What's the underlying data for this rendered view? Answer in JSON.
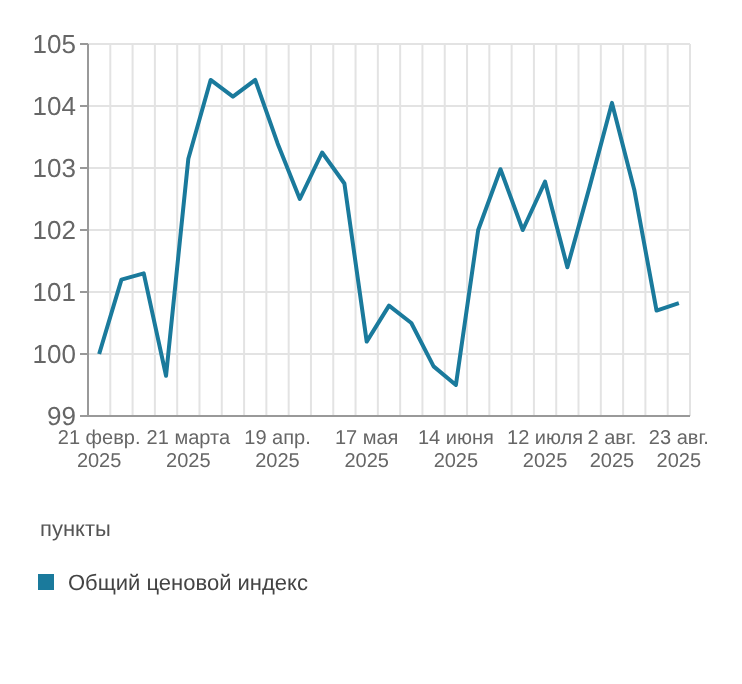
{
  "chart_data": {
    "type": "line",
    "ylabel": "пункты",
    "categories": [
      "21 февр. 2025",
      null,
      null,
      null,
      "21 марта 2025",
      null,
      null,
      null,
      "19 апр. 2025",
      null,
      null,
      null,
      "17 мая 2025",
      null,
      null,
      null,
      "14 июня 2025",
      null,
      null,
      null,
      "12 июля 2025",
      null,
      null,
      "2 авг. 2025",
      null,
      null,
      "23 авг. 2025"
    ],
    "series": [
      {
        "name": "Общий ценовой индекс",
        "color": "#1a7a9c",
        "values": [
          100.0,
          101.2,
          101.3,
          99.65,
          103.15,
          104.42,
          104.15,
          104.42,
          103.4,
          102.5,
          103.25,
          102.75,
          100.2,
          100.78,
          100.5,
          99.8,
          99.5,
          102.0,
          102.98,
          102.0,
          102.78,
          101.4,
          102.7,
          104.05,
          102.65,
          100.7,
          100.82
        ]
      }
    ],
    "ylim": [
      99,
      105
    ],
    "yticks": [
      99,
      100,
      101,
      102,
      103,
      104,
      105
    ],
    "grid": true,
    "legend": "bottom",
    "marker": "none",
    "line_style": "solid"
  }
}
